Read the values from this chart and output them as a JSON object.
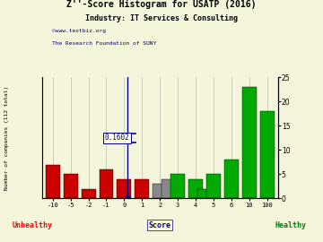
{
  "title": "Z''-Score Histogram for USATP (2016)",
  "subtitle": "Industry: IT Services & Consulting",
  "watermark1": "©www.textbiz.org",
  "watermark2": "The Research Foundation of SUNY",
  "z_score_value": "0.1602",
  "score_positions": [
    -10,
    -5,
    -2,
    -1,
    0,
    1,
    2,
    2.5,
    3,
    4,
    4.5,
    5,
    6,
    10,
    100
  ],
  "bar_heights": [
    7,
    5,
    2,
    6,
    4,
    4,
    3,
    4,
    5,
    4,
    2,
    5,
    8,
    23,
    18
  ],
  "bar_colors": [
    "#cc0000",
    "#cc0000",
    "#cc0000",
    "#cc0000",
    "#cc0000",
    "#cc0000",
    "#888888",
    "#888888",
    "#00aa00",
    "#00aa00",
    "#00aa00",
    "#00aa00",
    "#00aa00",
    "#00aa00",
    "#00aa00"
  ],
  "tick_scores": [
    -10,
    -5,
    -2,
    -1,
    0,
    1,
    2,
    3,
    4,
    5,
    6,
    10,
    100
  ],
  "tick_disp": [
    0,
    1,
    2,
    3,
    4,
    5,
    6,
    7,
    8,
    9,
    10,
    11,
    12
  ],
  "xtick_labels": [
    "-10",
    "-5",
    "-2",
    "-1",
    "0",
    "1",
    "2",
    "3",
    "4",
    "5",
    "6",
    "10",
    "100"
  ],
  "ylim": [
    0,
    25
  ],
  "yticks": [
    0,
    5,
    10,
    15,
    20,
    25
  ],
  "bg_color": "#f5f5dc",
  "vline_score": 0.1602,
  "bar_width": 0.8
}
